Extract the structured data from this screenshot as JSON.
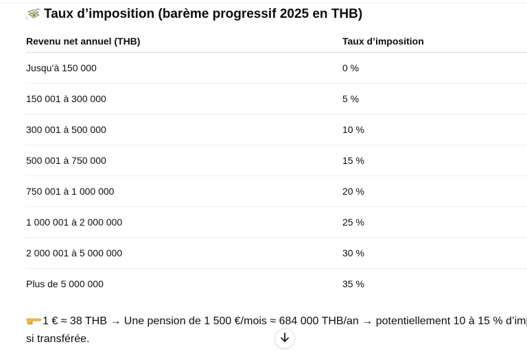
{
  "heading": {
    "icon": "money-with-wings-icon",
    "text": "Taux d’imposition (barème progressif 2025 en THB)"
  },
  "table": {
    "headers": [
      "Revenu net annuel (THB)",
      "Taux d’imposition"
    ],
    "rows": [
      [
        "Jusqu’à 150 000",
        "0 %"
      ],
      [
        "150 001 à 300 000",
        "5 %"
      ],
      [
        "300 001 à 500 000",
        "10 %"
      ],
      [
        "500 001 à 750 000",
        "15 %"
      ],
      [
        "750 001 à 1 000 000",
        "20 %"
      ],
      [
        "1 000 001 à 2 000 000",
        "25 %"
      ],
      [
        "2 000 001 à 5 000 000",
        "30 %"
      ],
      [
        "Plus de 5 000 000",
        "35 %"
      ]
    ]
  },
  "note": {
    "icon": "pointing-hand-icon",
    "line1": "1 € ≈ 38 THB → Une pension de 1 500 €/mois ≈ 684 000 THB/an → potentiellement 10 à 15 % d’imp",
    "line2": "si transférée."
  },
  "scroll_button": {
    "icon": "arrow-down-icon"
  }
}
